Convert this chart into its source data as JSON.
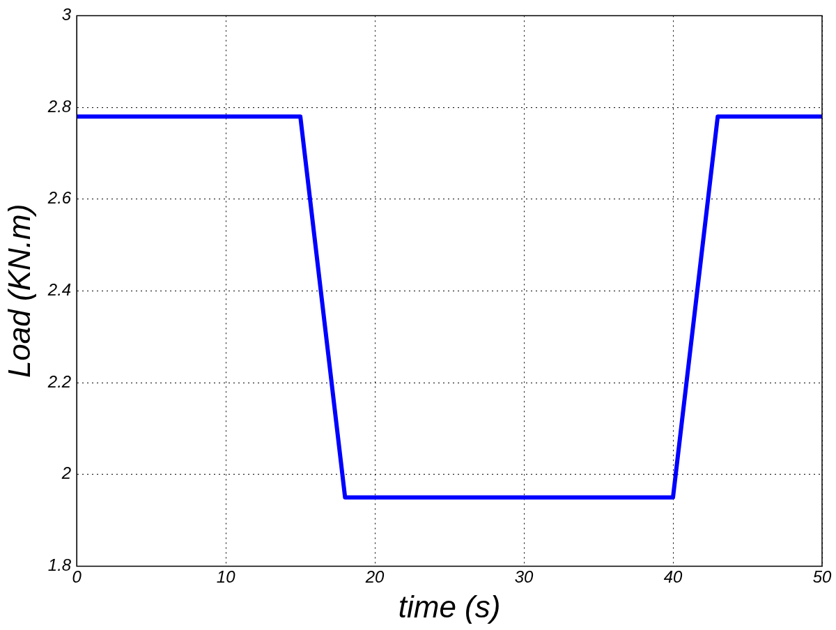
{
  "chart_data": {
    "type": "line",
    "xlabel": "time (s)",
    "ylabel": "Load (KN.m)",
    "x": [
      0,
      15,
      18,
      40,
      43,
      50
    ],
    "series": [
      {
        "color": "#0000ff",
        "values": [
          2.78,
          2.78,
          1.95,
          1.95,
          2.78,
          2.78
        ]
      }
    ],
    "xlim": [
      0,
      50
    ],
    "xticks": [
      0,
      10,
      20,
      30,
      40,
      50
    ],
    "ylim": [
      1.8,
      3
    ],
    "yticks": [
      1.8,
      2,
      2.2,
      2.4,
      2.6,
      2.8,
      3
    ],
    "grid": true,
    "legend": false,
    "marker": "none",
    "line_style": "solid"
  }
}
